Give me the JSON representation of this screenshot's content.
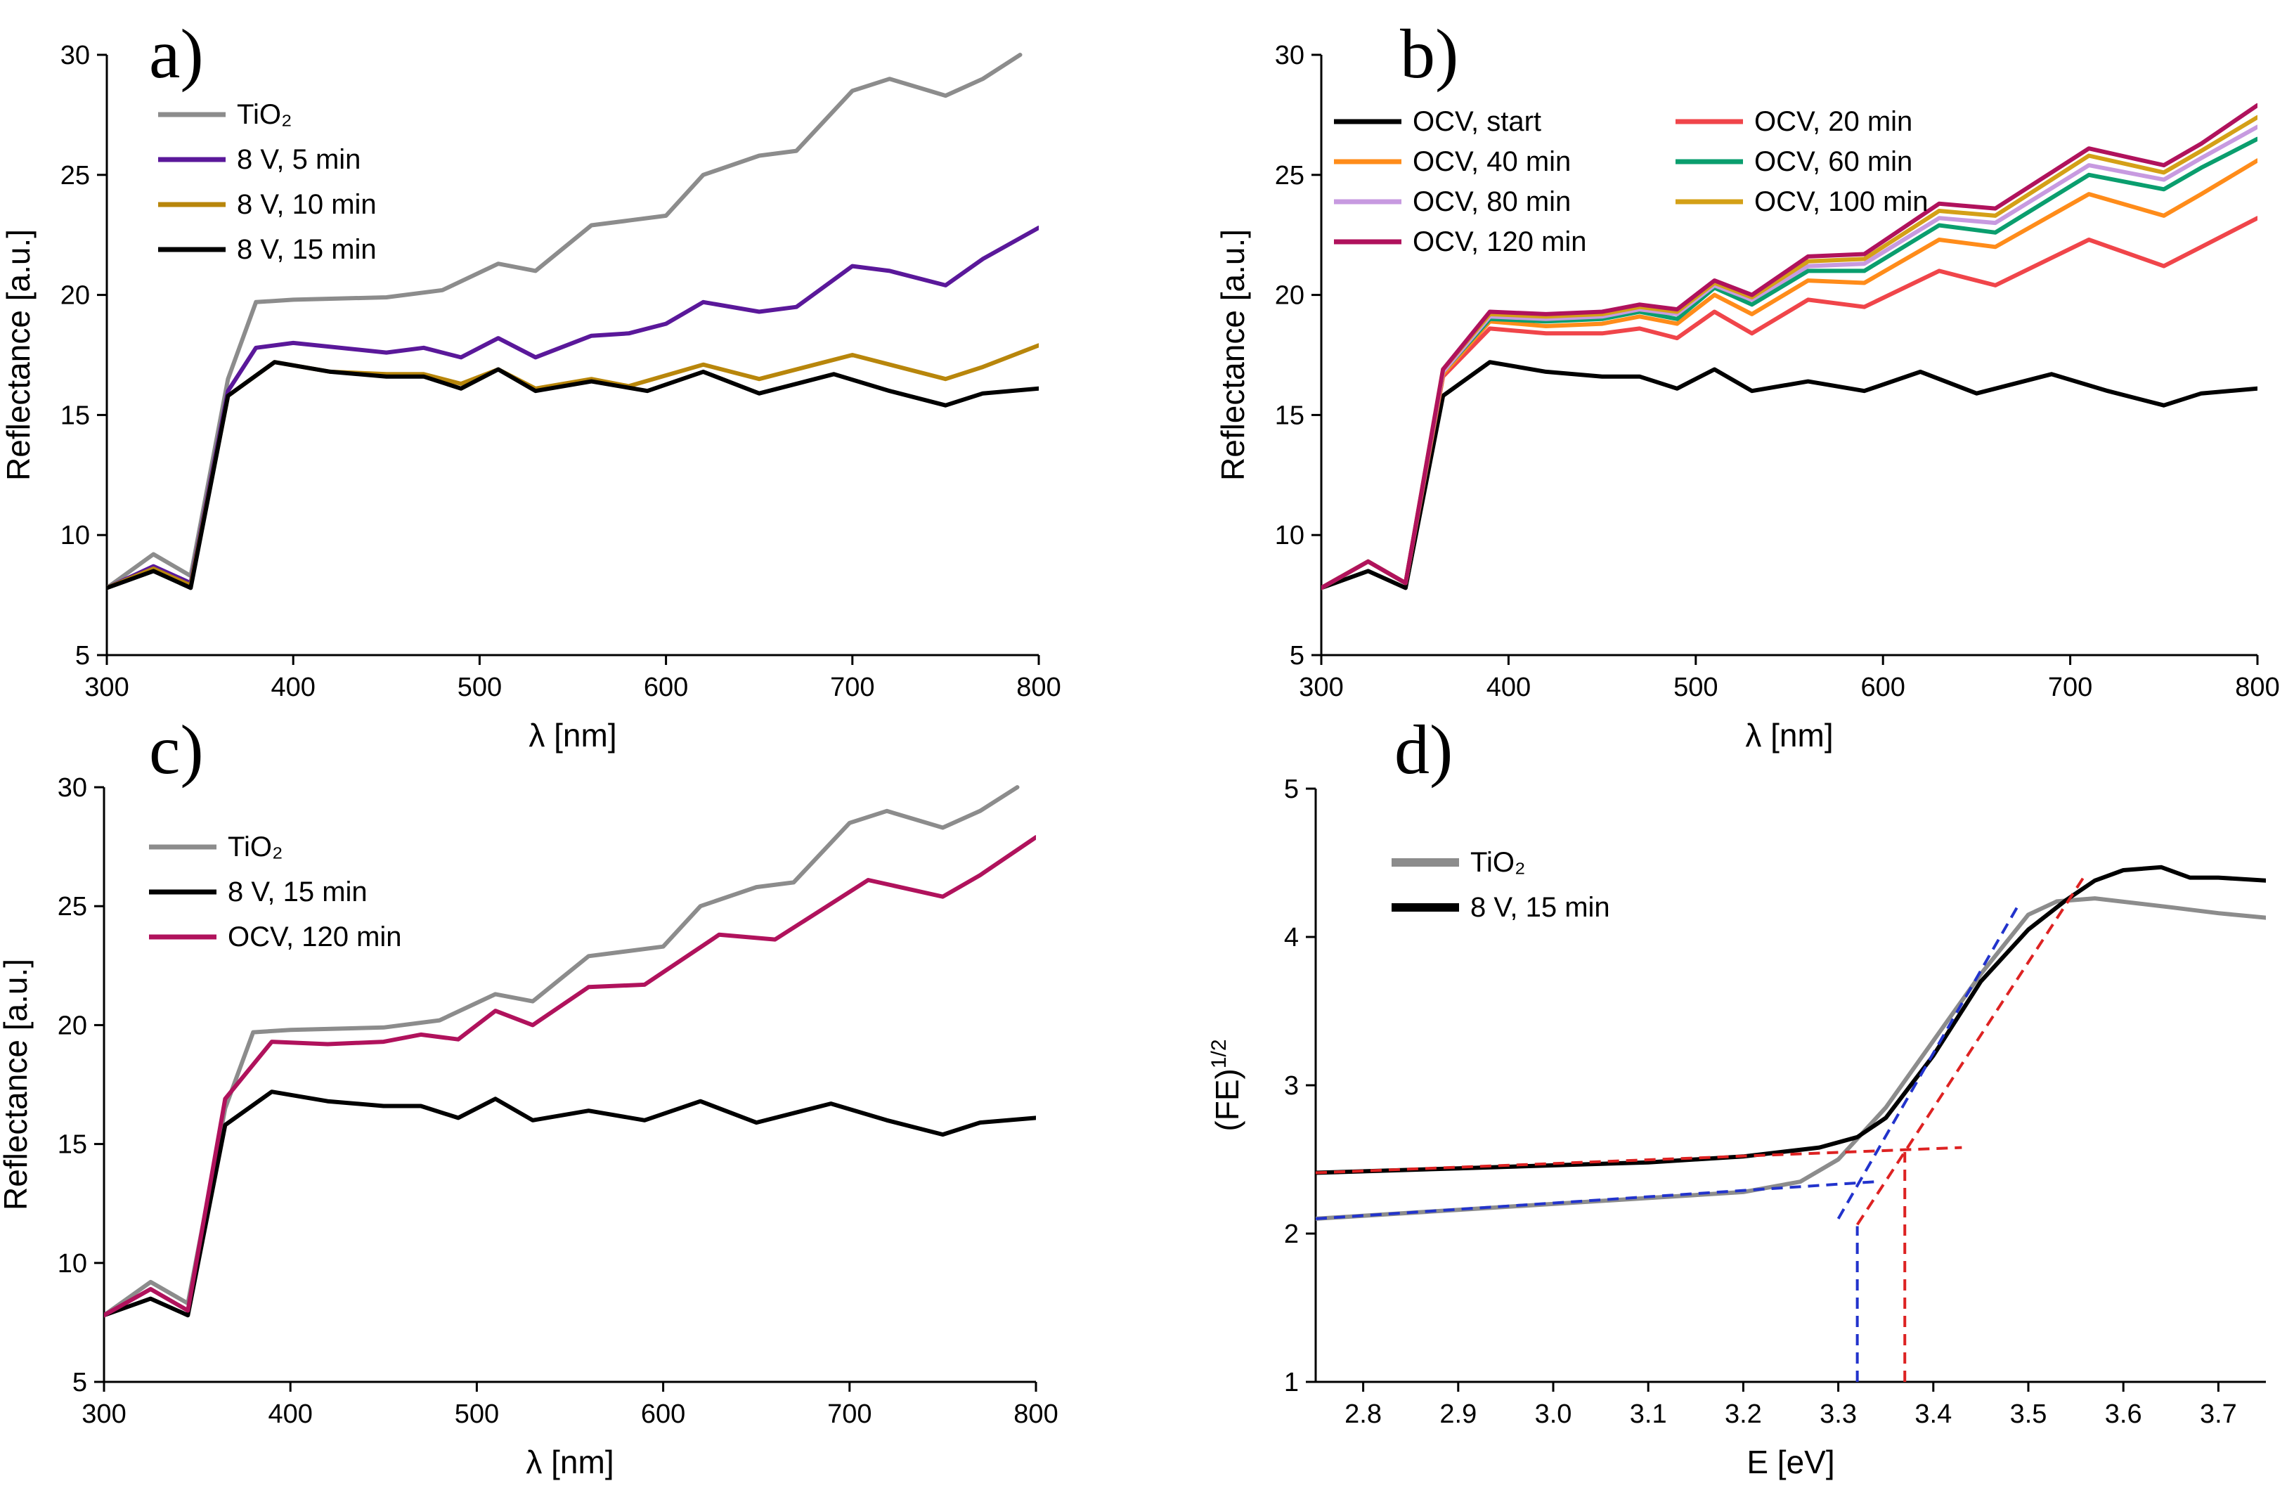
{
  "chart_data": [
    {
      "panel": "a)",
      "type": "line",
      "xlabel": "λ [nm]",
      "ylabel": "Reflectance [a.u.]",
      "xlim": [
        300,
        800
      ],
      "ylim": [
        5,
        30
      ],
      "xticks": [
        "300",
        "400",
        "500",
        "600",
        "700",
        "800"
      ],
      "yticks": [
        "5",
        "10",
        "15",
        "20",
        "25",
        "30"
      ],
      "legend": "top-left",
      "series": [
        {
          "name": "TiO₂",
          "color": "#8c8c8c",
          "x": [
            300,
            325,
            345,
            365,
            380,
            400,
            450,
            480,
            510,
            530,
            560,
            580,
            600,
            620,
            650,
            670,
            700,
            720,
            750,
            770,
            790
          ],
          "y": [
            7.8,
            9.2,
            8.3,
            16.5,
            19.7,
            19.8,
            19.9,
            20.2,
            21.3,
            21.0,
            22.9,
            23.1,
            23.3,
            25.0,
            25.8,
            26.0,
            28.5,
            29.0,
            28.3,
            29.0,
            30.0
          ]
        },
        {
          "name": "8 V, 5 min",
          "color": "#5a189a",
          "x": [
            300,
            325,
            345,
            365,
            380,
            400,
            450,
            470,
            490,
            510,
            530,
            560,
            580,
            600,
            620,
            650,
            670,
            700,
            720,
            750,
            770,
            800
          ],
          "y": [
            7.8,
            8.7,
            8.0,
            16.0,
            17.8,
            18.0,
            17.6,
            17.8,
            17.4,
            18.2,
            17.4,
            18.3,
            18.4,
            18.8,
            19.7,
            19.3,
            19.5,
            21.2,
            21.0,
            20.4,
            21.5,
            22.8
          ]
        },
        {
          "name": "8 V, 10 min",
          "color": "#b8860b",
          "x": [
            300,
            325,
            345,
            365,
            390,
            420,
            450,
            470,
            490,
            510,
            530,
            560,
            580,
            620,
            650,
            700,
            750,
            770,
            800
          ],
          "y": [
            7.8,
            8.6,
            7.9,
            15.8,
            17.2,
            16.8,
            16.7,
            16.7,
            16.3,
            16.9,
            16.1,
            16.5,
            16.2,
            17.1,
            16.5,
            17.5,
            16.5,
            17.0,
            17.9
          ]
        },
        {
          "name": "8 V, 15 min",
          "color": "#000000",
          "x": [
            300,
            325,
            345,
            365,
            390,
            420,
            450,
            470,
            490,
            510,
            530,
            560,
            590,
            620,
            650,
            690,
            720,
            750,
            770,
            800
          ],
          "y": [
            7.8,
            8.5,
            7.8,
            15.8,
            17.2,
            16.8,
            16.6,
            16.6,
            16.1,
            16.9,
            16.0,
            16.4,
            16.0,
            16.8,
            15.9,
            16.7,
            16.0,
            15.4,
            15.9,
            16.1
          ]
        }
      ]
    },
    {
      "panel": "b)",
      "type": "line",
      "xlabel": "λ [nm]",
      "ylabel": "Reflectance [a.u.]",
      "xlim": [
        300,
        800
      ],
      "ylim": [
        5,
        30
      ],
      "xticks": [
        "300",
        "400",
        "500",
        "600",
        "700",
        "800"
      ],
      "yticks": [
        "5",
        "10",
        "15",
        "20",
        "25",
        "30"
      ],
      "legend": "top-left, two columns",
      "series": [
        {
          "name": "OCV, start",
          "color": "#000000",
          "x": [
            300,
            325,
            345,
            365,
            390,
            420,
            450,
            470,
            490,
            510,
            530,
            560,
            590,
            620,
            650,
            690,
            720,
            750,
            770,
            800
          ],
          "y": [
            7.8,
            8.5,
            7.8,
            15.8,
            17.2,
            16.8,
            16.6,
            16.6,
            16.1,
            16.9,
            16.0,
            16.4,
            16.0,
            16.8,
            15.9,
            16.7,
            16.0,
            15.4,
            15.9,
            16.1
          ]
        },
        {
          "name": "OCV, 20 min",
          "color": "#f0454a",
          "x": [
            300,
            325,
            345,
            365,
            390,
            420,
            450,
            470,
            490,
            510,
            530,
            560,
            590,
            630,
            660,
            710,
            750,
            770,
            800
          ],
          "y": [
            7.8,
            8.9,
            8.0,
            16.6,
            18.6,
            18.4,
            18.4,
            18.6,
            18.2,
            19.3,
            18.4,
            19.8,
            19.5,
            21.0,
            20.4,
            22.3,
            21.2,
            22.0,
            23.2
          ]
        },
        {
          "name": "OCV, 40 min",
          "color": "#ff8c1a",
          "x": [
            300,
            325,
            345,
            365,
            390,
            420,
            450,
            470,
            490,
            510,
            530,
            560,
            590,
            630,
            660,
            710,
            750,
            770,
            800
          ],
          "y": [
            7.8,
            8.9,
            8.0,
            16.7,
            18.9,
            18.7,
            18.8,
            19.1,
            18.8,
            20.0,
            19.2,
            20.6,
            20.5,
            22.3,
            22.0,
            24.2,
            23.3,
            24.2,
            25.6
          ]
        },
        {
          "name": "OCV, 60 min",
          "color": "#0a9e6e",
          "x": [
            300,
            325,
            345,
            365,
            390,
            420,
            450,
            470,
            490,
            510,
            530,
            560,
            590,
            630,
            660,
            710,
            750,
            770,
            800
          ],
          "y": [
            7.8,
            8.9,
            8.0,
            16.8,
            19.0,
            18.9,
            19.0,
            19.3,
            19.0,
            20.3,
            19.6,
            21.0,
            21.0,
            22.9,
            22.6,
            25.0,
            24.4,
            25.3,
            26.5
          ]
        },
        {
          "name": "OCV, 80 min",
          "color": "#c79ae0",
          "x": [
            300,
            325,
            345,
            365,
            390,
            420,
            450,
            470,
            490,
            510,
            530,
            560,
            590,
            630,
            660,
            710,
            750,
            770,
            800
          ],
          "y": [
            7.8,
            8.9,
            8.0,
            16.8,
            19.1,
            19.0,
            19.1,
            19.4,
            19.2,
            20.4,
            19.8,
            21.2,
            21.3,
            23.2,
            23.0,
            25.4,
            24.8,
            25.7,
            27.0
          ]
        },
        {
          "name": "OCV, 100 min",
          "color": "#d4a017",
          "x": [
            300,
            325,
            345,
            365,
            390,
            420,
            450,
            470,
            490,
            510,
            530,
            560,
            590,
            630,
            660,
            710,
            750,
            770,
            800
          ],
          "y": [
            7.8,
            8.9,
            8.0,
            16.9,
            19.2,
            19.1,
            19.2,
            19.5,
            19.3,
            20.5,
            19.9,
            21.4,
            21.5,
            23.5,
            23.3,
            25.8,
            25.1,
            26.0,
            27.4
          ]
        },
        {
          "name": "OCV, 120 min",
          "color": "#b0125c",
          "x": [
            300,
            325,
            345,
            365,
            390,
            420,
            450,
            470,
            490,
            510,
            530,
            560,
            590,
            630,
            660,
            710,
            750,
            770,
            800
          ],
          "y": [
            7.8,
            8.9,
            8.0,
            16.9,
            19.3,
            19.2,
            19.3,
            19.6,
            19.4,
            20.6,
            20.0,
            21.6,
            21.7,
            23.8,
            23.6,
            26.1,
            25.4,
            26.3,
            27.9
          ]
        }
      ]
    },
    {
      "panel": "c)",
      "type": "line",
      "xlabel": "λ [nm]",
      "ylabel": "Reflectance [a.u.]",
      "xlim": [
        300,
        800
      ],
      "ylim": [
        5,
        30
      ],
      "xticks": [
        "300",
        "400",
        "500",
        "600",
        "700",
        "800"
      ],
      "yticks": [
        "5",
        "10",
        "15",
        "20",
        "25",
        "30"
      ],
      "legend": "top-left",
      "series": [
        {
          "name": "TiO₂",
          "color": "#8c8c8c",
          "x": [
            300,
            325,
            345,
            365,
            380,
            400,
            450,
            480,
            510,
            530,
            560,
            580,
            600,
            620,
            650,
            670,
            700,
            720,
            750,
            770,
            790
          ],
          "y": [
            7.8,
            9.2,
            8.3,
            16.5,
            19.7,
            19.8,
            19.9,
            20.2,
            21.3,
            21.0,
            22.9,
            23.1,
            23.3,
            25.0,
            25.8,
            26.0,
            28.5,
            29.0,
            28.3,
            29.0,
            30.0
          ]
        },
        {
          "name": "8 V, 15 min",
          "color": "#000000",
          "x": [
            300,
            325,
            345,
            365,
            390,
            420,
            450,
            470,
            490,
            510,
            530,
            560,
            590,
            620,
            650,
            690,
            720,
            750,
            770,
            800
          ],
          "y": [
            7.8,
            8.5,
            7.8,
            15.8,
            17.2,
            16.8,
            16.6,
            16.6,
            16.1,
            16.9,
            16.0,
            16.4,
            16.0,
            16.8,
            15.9,
            16.7,
            16.0,
            15.4,
            15.9,
            16.1
          ]
        },
        {
          "name": "OCV, 120 min",
          "color": "#b0125c",
          "x": [
            300,
            325,
            345,
            365,
            390,
            420,
            450,
            470,
            490,
            510,
            530,
            560,
            590,
            630,
            660,
            710,
            750,
            770,
            800
          ],
          "y": [
            7.8,
            8.9,
            8.0,
            16.9,
            19.3,
            19.2,
            19.3,
            19.6,
            19.4,
            20.6,
            20.0,
            21.6,
            21.7,
            23.8,
            23.6,
            26.1,
            25.4,
            26.3,
            27.9
          ]
        }
      ]
    },
    {
      "panel": "d)",
      "type": "line",
      "xlabel": "E [eV]",
      "ylabel": "(FE)1/2",
      "ylabel_main": "(FE)",
      "ylabel_sup": "1/2",
      "xlim": [
        2.75,
        3.75
      ],
      "ylim": [
        1,
        5
      ],
      "xticks": [
        "2.8",
        "2.9",
        "3.0",
        "3.1",
        "3.2",
        "3.3",
        "3.4",
        "3.5",
        "3.6",
        "3.7"
      ],
      "yticks": [
        "1",
        "2",
        "3",
        "4",
        "5"
      ],
      "legend": "top-left",
      "series": [
        {
          "name": "TiO₂",
          "color": "#8c8c8c",
          "x": [
            2.75,
            2.9,
            3.1,
            3.2,
            3.26,
            3.3,
            3.35,
            3.4,
            3.45,
            3.5,
            3.53,
            3.57,
            3.65,
            3.7,
            3.75
          ],
          "y": [
            2.1,
            2.16,
            2.24,
            2.28,
            2.35,
            2.5,
            2.85,
            3.3,
            3.75,
            4.15,
            4.24,
            4.26,
            4.2,
            4.16,
            4.13
          ]
        },
        {
          "name": "8 V, 15 min",
          "color": "#000000",
          "x": [
            2.75,
            2.9,
            3.1,
            3.2,
            3.28,
            3.32,
            3.35,
            3.4,
            3.45,
            3.5,
            3.54,
            3.57,
            3.6,
            3.64,
            3.67,
            3.7,
            3.75
          ],
          "y": [
            2.41,
            2.44,
            2.48,
            2.52,
            2.58,
            2.65,
            2.78,
            3.2,
            3.7,
            4.05,
            4.25,
            4.38,
            4.45,
            4.47,
            4.4,
            4.4,
            4.38
          ]
        }
      ],
      "guides": [
        {
          "color": "#2233cc",
          "lines": [
            [
              2.75,
              2.1,
              3.34,
              2.35
            ],
            [
              3.3,
              2.1,
              3.49,
              4.22
            ],
            [
              3.32,
              1.0,
              3.32,
              2.05
            ]
          ]
        },
        {
          "color": "#dd2222",
          "lines": [
            [
              2.75,
              2.41,
              3.43,
              2.58
            ],
            [
              3.32,
              2.06,
              3.56,
              4.42
            ],
            [
              3.37,
              1.0,
              3.37,
              2.55
            ]
          ]
        }
      ],
      "annotations": [
        "3.32",
        "3.37"
      ]
    }
  ]
}
